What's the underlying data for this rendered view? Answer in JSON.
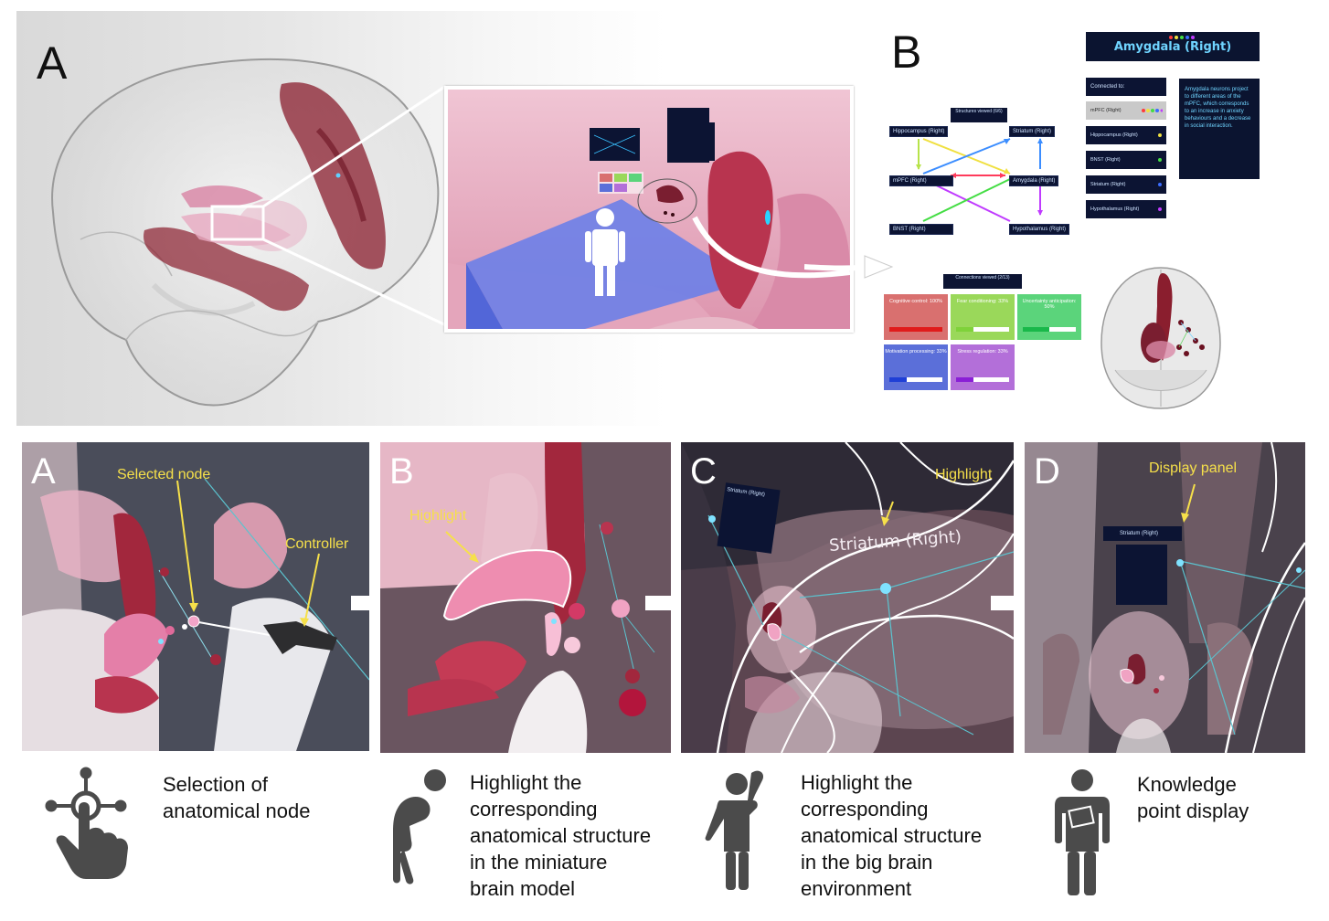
{
  "top": {
    "letter_a": "A",
    "letter_b": "B",
    "amygdala_title": "Amygdala (Right)",
    "amygdala_description": "Amygdala neurons project to different areas of the mPFC, which corresponds to an increase in anxiety behaviours and a decrease in social interaction.",
    "connected_to_label": "Connected to:",
    "connected_items": [
      {
        "label": "mPFC (Right)",
        "dot_color": "#ff3b3b"
      },
      {
        "label": "Hippocampus (Right)",
        "dot_color": "#f0e040"
      },
      {
        "label": "BNST (Right)",
        "dot_color": "#44dd44"
      },
      {
        "label": "Striatum (Right)",
        "dot_color": "#3b6dff"
      },
      {
        "label": "Hypothalamus (Right)",
        "dot_color": "#c03bff"
      }
    ],
    "structures_viewed": "Structures viewed (6/6)",
    "network_nodes": {
      "hippocampus": "Hippocampus (Right)",
      "striatum": "Striatum (Right)",
      "mpfc": "mPFC (Right)",
      "amygdala": "Amygdala (Right)",
      "bnst": "BNST (Right)",
      "hypothalamus": "Hypothalamus (Right)"
    },
    "connections_viewed": "Connections viewed (2/13)",
    "function_cards": [
      {
        "label": "Cognitive control: 100%",
        "value": 1.0,
        "bg": "#d9706f",
        "bar": "#e01b1b"
      },
      {
        "label": "Fear conditioning: 33%",
        "value": 0.33,
        "bg": "#9ad85a",
        "bar": "#7fd23a"
      },
      {
        "label": "Uncertainty anticipation: 50%",
        "value": 0.5,
        "bg": "#5bd47b",
        "bar": "#19b84a"
      },
      {
        "label": "Motivation processing: 33%",
        "value": 0.33,
        "bg": "#5b6fd9",
        "bar": "#1f3fd6"
      },
      {
        "label": "Stress regulation: 33%",
        "value": 0.33,
        "bg": "#b36fd9",
        "bar": "#8a1fd6"
      }
    ]
  },
  "bottom": {
    "panels": [
      {
        "letter": "A",
        "labels": [
          "Selected node",
          "Controller"
        ]
      },
      {
        "letter": "B",
        "labels": [
          "Highlight"
        ]
      },
      {
        "letter": "C",
        "labels": [
          "Highlight",
          "Striatum (Right)",
          "Striatum (Right)"
        ]
      },
      {
        "letter": "D",
        "labels": [
          "Display panel",
          "Striatum (Right)"
        ]
      }
    ],
    "captions": [
      [
        "Selection of",
        "anatomical node"
      ],
      [
        "Highlight the",
        "corresponding",
        "anatomical structure",
        "in the miniature",
        "brain model"
      ],
      [
        "Highlight the",
        "corresponding",
        "anatomical structure",
        "in the big brain",
        "environment"
      ],
      [
        "Knowledge",
        "point display"
      ]
    ],
    "icons": [
      "touch-node-icon",
      "bending-person-icon",
      "thinking-person-icon",
      "reading-person-icon"
    ]
  }
}
